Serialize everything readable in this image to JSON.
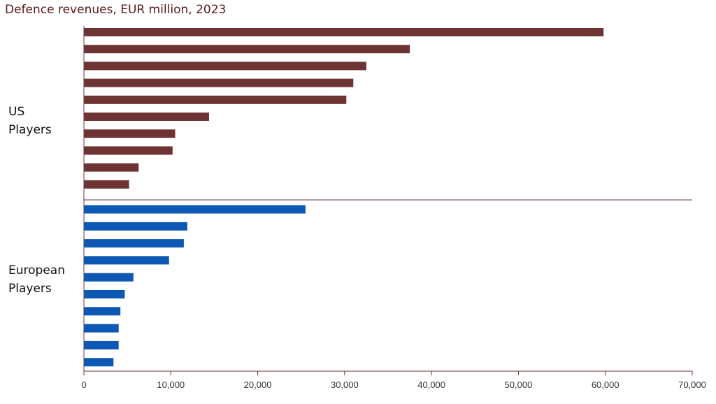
{
  "chart_data": {
    "type": "bar",
    "orientation": "horizontal",
    "title": "Defence revenues, EUR million, 2023",
    "xlabel": "",
    "ylabel": "",
    "xlim": [
      0,
      70000
    ],
    "x_ticks": [
      0,
      10000,
      20000,
      30000,
      40000,
      50000,
      60000,
      70000
    ],
    "x_tick_labels": [
      "0",
      "10,000",
      "20,000",
      "30,000",
      "40,000",
      "50,000",
      "60,000",
      "70,000"
    ],
    "grid": false,
    "groups": [
      {
        "label": "US\nPlayers",
        "color": "#6e3434",
        "values": [
          59800,
          37500,
          32500,
          31000,
          30200,
          14400,
          10500,
          10200,
          6300,
          5200
        ]
      },
      {
        "label": "European\nPlayers",
        "color": "#0d57b5",
        "values": [
          25500,
          11900,
          11500,
          9800,
          5700,
          4700,
          4200,
          4000,
          4000,
          3400
        ]
      }
    ]
  }
}
